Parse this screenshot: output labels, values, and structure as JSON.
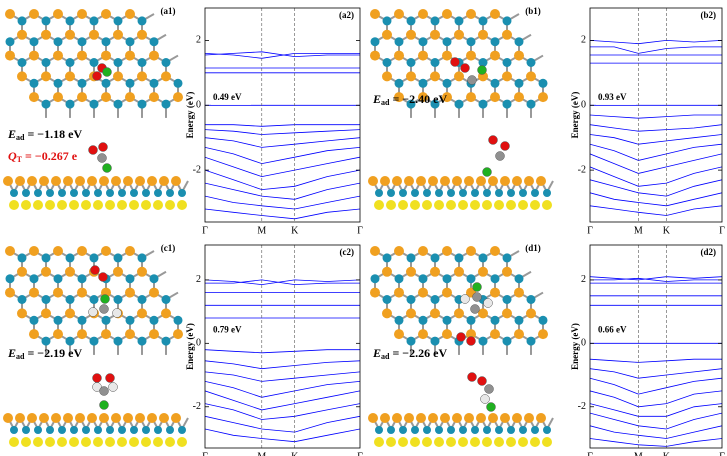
{
  "structures": [
    {
      "label": "(a1)",
      "energy": {
        "symbol": "E",
        "sub": "ad",
        "text": " = −1.18 eV"
      },
      "charge": {
        "symbol": "Q",
        "sub": "T",
        "text": " = −0.267 e"
      }
    },
    {
      "label": "(b1)",
      "energy": {
        "symbol": "E",
        "sub": "ad",
        "text": " = −2.40 eV"
      }
    },
    {
      "label": "(c1)",
      "energy": {
        "symbol": "E",
        "sub": "ad",
        "text": " = −2.19 eV"
      }
    },
    {
      "label": "(d1)",
      "energy": {
        "symbol": "E",
        "sub": "ad",
        "text": " = −2.26 eV"
      }
    }
  ],
  "chart_data": [
    {
      "type": "line",
      "label": "(a2)",
      "annotation": "0.49 eV",
      "ylabel": "Energy (eV)",
      "color": "#0000ff",
      "x": [
        0,
        0.5,
        1,
        1.58,
        2.15,
        2.73
      ],
      "xlim": [
        0,
        2.73
      ],
      "xticks": [
        {
          "value": 0,
          "label": "Γ"
        },
        {
          "value": 1,
          "label": "M"
        },
        {
          "value": 1.58,
          "label": "K"
        },
        {
          "value": 2.73,
          "label": "Γ"
        }
      ],
      "ylim": [
        -3.6,
        3
      ],
      "yticks": [
        -2,
        0,
        2
      ],
      "series": [
        {
          "values": [
            1.6,
            1.55,
            1.45,
            1.6,
            1.6,
            1.6
          ]
        },
        {
          "values": [
            1.55,
            1.6,
            1.65,
            1.5,
            1.55,
            1.55
          ]
        },
        {
          "values": [
            1.15,
            1.15,
            1.15,
            1.15,
            1.15,
            1.15
          ]
        },
        {
          "values": [
            1.0,
            1.0,
            1.0,
            1.0,
            1.0,
            1.0
          ]
        },
        {
          "values": [
            0,
            0,
            0,
            0,
            0,
            0
          ]
        },
        {
          "values": [
            -0.6,
            -0.6,
            -0.65,
            -0.6,
            -0.6,
            -0.6
          ]
        },
        {
          "values": [
            -0.75,
            -0.8,
            -0.9,
            -0.85,
            -0.8,
            -0.75
          ]
        },
        {
          "values": [
            -1.0,
            -1.1,
            -1.3,
            -1.2,
            -1.1,
            -1.0
          ]
        },
        {
          "values": [
            -1.3,
            -1.5,
            -1.8,
            -1.6,
            -1.4,
            -1.3
          ]
        },
        {
          "values": [
            -1.6,
            -1.9,
            -2.2,
            -2.0,
            -1.8,
            -1.6
          ]
        },
        {
          "values": [
            -2.0,
            -2.3,
            -2.6,
            -2.5,
            -2.2,
            -2.0
          ]
        },
        {
          "values": [
            -2.4,
            -2.6,
            -2.8,
            -2.9,
            -2.6,
            -2.4
          ]
        },
        {
          "values": [
            -2.8,
            -3.0,
            -3.1,
            -3.2,
            -3.0,
            -2.8
          ]
        },
        {
          "values": [
            -3.2,
            -3.3,
            -3.4,
            -3.5,
            -3.3,
            -3.2
          ]
        }
      ]
    },
    {
      "type": "line",
      "label": "(b2)",
      "annotation": "0.93 eV",
      "ylabel": "Energy (eV)",
      "color": "#0000ff",
      "x": [
        0,
        0.5,
        1,
        1.58,
        2.15,
        2.73
      ],
      "xlim": [
        0,
        2.73
      ],
      "xticks": [
        {
          "value": 0,
          "label": "Γ"
        },
        {
          "value": 1,
          "label": "M"
        },
        {
          "value": 1.58,
          "label": "K"
        },
        {
          "value": 2.73,
          "label": "Γ"
        }
      ],
      "ylim": [
        -3.6,
        3
      ],
      "yticks": [
        -2,
        0,
        2
      ],
      "series": [
        {
          "values": [
            2.0,
            1.95,
            1.9,
            2.0,
            1.95,
            2.0
          ]
        },
        {
          "values": [
            1.8,
            1.8,
            1.6,
            1.75,
            1.8,
            1.8
          ]
        },
        {
          "values": [
            1.55,
            1.55,
            1.55,
            1.55,
            1.55,
            1.55
          ]
        },
        {
          "values": [
            1.3,
            1.3,
            1.3,
            1.3,
            1.3,
            1.3
          ]
        },
        {
          "values": [
            0,
            0,
            0,
            0,
            0,
            0
          ]
        },
        {
          "values": [
            -0.3,
            -0.35,
            -0.4,
            -0.35,
            -0.3,
            -0.3
          ]
        },
        {
          "values": [
            -0.6,
            -0.7,
            -0.8,
            -0.75,
            -0.7,
            -0.6
          ]
        },
        {
          "values": [
            -0.9,
            -1.0,
            -1.2,
            -1.1,
            -1.0,
            -0.9
          ]
        },
        {
          "values": [
            -1.2,
            -1.4,
            -1.7,
            -1.5,
            -1.3,
            -1.2
          ]
        },
        {
          "values": [
            -1.5,
            -1.8,
            -2.1,
            -1.9,
            -1.7,
            -1.5
          ]
        },
        {
          "values": [
            -1.9,
            -2.2,
            -2.5,
            -2.4,
            -2.1,
            -1.9
          ]
        },
        {
          "values": [
            -2.3,
            -2.5,
            -2.7,
            -2.8,
            -2.5,
            -2.3
          ]
        },
        {
          "values": [
            -2.7,
            -2.9,
            -3.0,
            -3.1,
            -2.9,
            -2.7
          ]
        },
        {
          "values": [
            -3.1,
            -3.2,
            -3.3,
            -3.4,
            -3.2,
            -3.1
          ]
        }
      ]
    },
    {
      "type": "line",
      "label": "(c2)",
      "annotation": "0.79 eV",
      "ylabel": "Energy (eV)",
      "color": "#0000ff",
      "x": [
        0,
        0.5,
        1,
        1.58,
        2.15,
        2.73
      ],
      "xlim": [
        0,
        2.73
      ],
      "xticks": [
        {
          "value": 0,
          "label": "Γ"
        },
        {
          "value": 1,
          "label": "M"
        },
        {
          "value": 1.58,
          "label": "K"
        },
        {
          "value": 2.73,
          "label": "Γ"
        }
      ],
      "ylim": [
        -3.3,
        3.1
      ],
      "yticks": [
        -2,
        0,
        2
      ],
      "series": [
        {
          "values": [
            2.0,
            1.95,
            1.85,
            2.0,
            1.95,
            2.0
          ]
        },
        {
          "values": [
            1.9,
            1.9,
            2.0,
            1.85,
            1.9,
            1.9
          ]
        },
        {
          "values": [
            1.6,
            1.6,
            1.6,
            1.6,
            1.6,
            1.6
          ]
        },
        {
          "values": [
            1.2,
            1.2,
            1.2,
            1.2,
            1.2,
            1.2
          ]
        },
        {
          "values": [
            0.8,
            0.8,
            0.8,
            0.8,
            0.8,
            0.8
          ]
        },
        {
          "values": [
            -0.2,
            -0.25,
            -0.3,
            -0.25,
            -0.2,
            -0.2
          ]
        },
        {
          "values": [
            -0.55,
            -0.65,
            -0.8,
            -0.7,
            -0.6,
            -0.55
          ]
        },
        {
          "values": [
            -0.9,
            -1.0,
            -1.2,
            -1.1,
            -1.0,
            -0.9
          ]
        },
        {
          "values": [
            -1.2,
            -1.4,
            -1.7,
            -1.5,
            -1.3,
            -1.2
          ]
        },
        {
          "values": [
            -1.5,
            -1.8,
            -2.1,
            -1.9,
            -1.7,
            -1.5
          ]
        },
        {
          "values": [
            -1.9,
            -2.1,
            -2.4,
            -2.3,
            -2.1,
            -1.9
          ]
        },
        {
          "values": [
            -2.3,
            -2.5,
            -2.7,
            -2.8,
            -2.5,
            -2.3
          ]
        },
        {
          "values": [
            -2.7,
            -2.9,
            -3.0,
            -3.1,
            -2.9,
            -2.7
          ]
        }
      ]
    },
    {
      "type": "line",
      "label": "(d2)",
      "annotation": "0.66 eV",
      "ylabel": "Energy (eV)",
      "color": "#0000ff",
      "x": [
        0,
        0.5,
        1,
        1.58,
        2.15,
        2.73
      ],
      "xlim": [
        0,
        2.73
      ],
      "xticks": [
        {
          "value": 0,
          "label": "Γ"
        },
        {
          "value": 1,
          "label": "M"
        },
        {
          "value": 1.58,
          "label": "K"
        },
        {
          "value": 2.73,
          "label": "Γ"
        }
      ],
      "ylim": [
        -3.3,
        3.1
      ],
      "yticks": [
        -2,
        0,
        2
      ],
      "series": [
        {
          "values": [
            2.1,
            2.05,
            2.0,
            2.1,
            2.05,
            2.1
          ]
        },
        {
          "values": [
            2.0,
            2.0,
            2.05,
            1.95,
            2.0,
            2.0
          ]
        },
        {
          "values": [
            1.9,
            1.9,
            1.9,
            1.9,
            1.9,
            1.9
          ]
        },
        {
          "values": [
            1.5,
            1.5,
            1.5,
            1.5,
            1.5,
            1.5
          ]
        },
        {
          "values": [
            1.2,
            1.2,
            1.2,
            1.2,
            1.2,
            1.2
          ]
        },
        {
          "values": [
            0,
            0,
            0,
            0,
            0,
            0
          ]
        },
        {
          "values": [
            -0.5,
            -0.55,
            -0.6,
            -0.55,
            -0.5,
            -0.5
          ]
        },
        {
          "values": [
            -0.8,
            -0.9,
            -1.1,
            -1.0,
            -0.9,
            -0.8
          ]
        },
        {
          "values": [
            -1.1,
            -1.3,
            -1.6,
            -1.4,
            -1.2,
            -1.1
          ]
        },
        {
          "values": [
            -1.5,
            -1.7,
            -2.0,
            -1.9,
            -1.6,
            -1.5
          ]
        },
        {
          "values": [
            -1.9,
            -2.1,
            -2.3,
            -2.3,
            -2.0,
            -1.9
          ]
        },
        {
          "values": [
            -2.2,
            -2.4,
            -2.6,
            -2.7,
            -2.4,
            -2.2
          ]
        },
        {
          "values": [
            -2.6,
            -2.8,
            -2.9,
            -3.0,
            -2.8,
            -2.6
          ]
        },
        {
          "values": [
            -3.0,
            -3.1,
            -3.2,
            -3.25,
            -3.1,
            -3.0
          ]
        }
      ]
    }
  ]
}
